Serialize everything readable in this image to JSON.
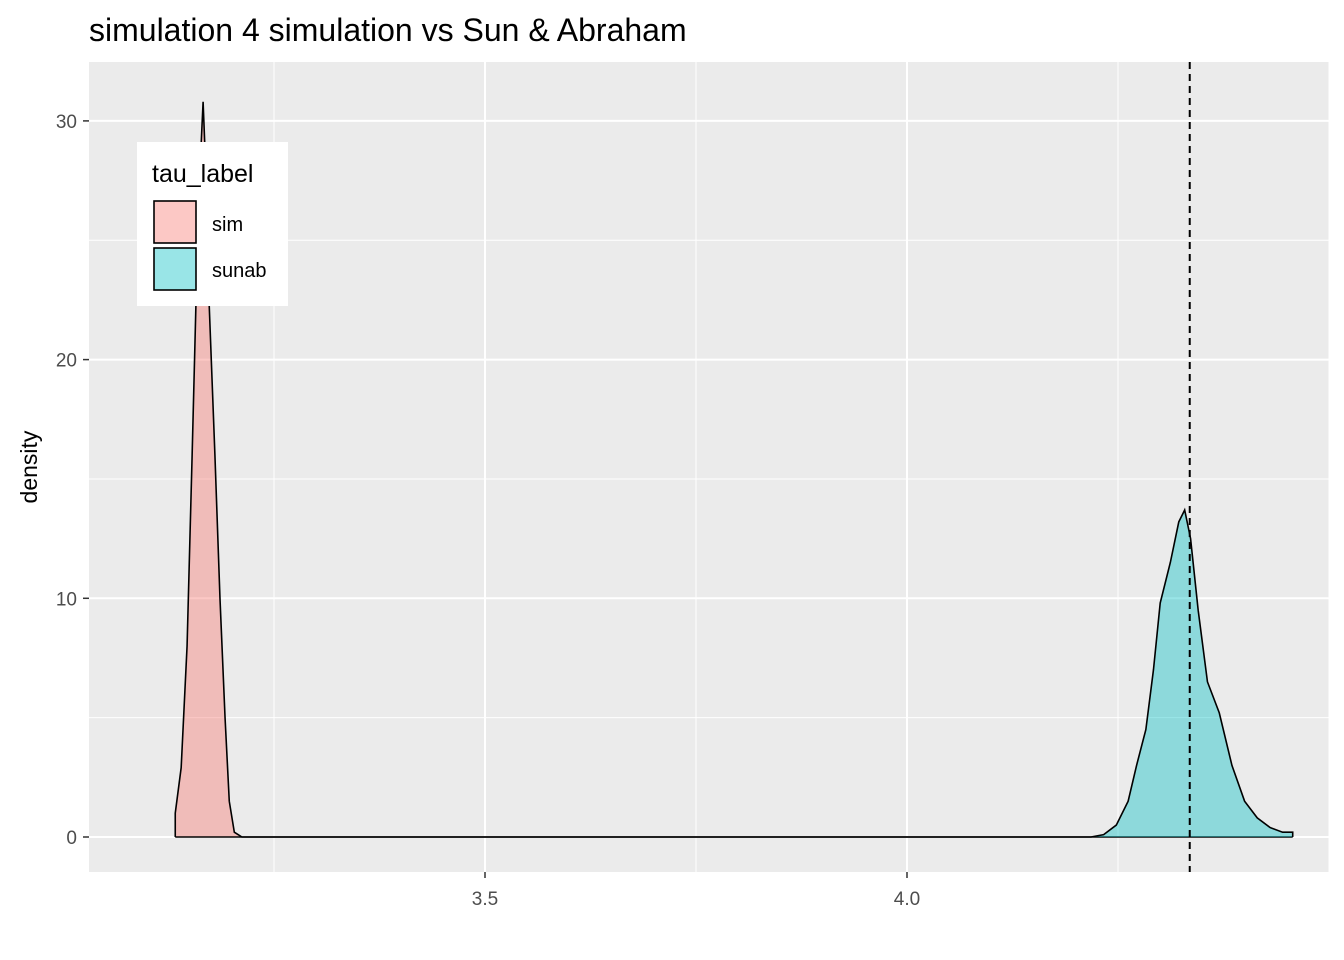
{
  "chart_data": {
    "type": "area",
    "title": "simulation 4 simulation vs Sun & Abraham",
    "xlabel": "",
    "ylabel": "density",
    "xlim": [
      3.1,
      4.5
    ],
    "ylim": [
      -1.5,
      32.5
    ],
    "x_ticks": [
      3.5,
      4.0
    ],
    "x_tick_labels": [
      "3.5",
      "4.0"
    ],
    "y_ticks": [
      0,
      10,
      20,
      30
    ],
    "y_tick_labels": [
      "0",
      "10",
      "20",
      "30"
    ],
    "grid": true,
    "legend_position": "top-left",
    "legend_title": "tau_label",
    "series": [
      {
        "name": "sim",
        "color": "#F8766D",
        "points": [
          [
            3.133,
            0.0
          ],
          [
            3.133,
            1.0
          ],
          [
            3.14,
            2.9
          ],
          [
            3.147,
            8.0
          ],
          [
            3.153,
            16.0
          ],
          [
            3.158,
            23.0
          ],
          [
            3.163,
            28.5
          ],
          [
            3.166,
            30.8
          ],
          [
            3.168,
            29.0
          ],
          [
            3.173,
            22.5
          ],
          [
            3.18,
            16.0
          ],
          [
            3.186,
            10.0
          ],
          [
            3.192,
            5.0
          ],
          [
            3.197,
            1.5
          ],
          [
            3.203,
            0.2
          ],
          [
            3.212,
            0.0
          ],
          [
            4.457,
            0.0
          ]
        ]
      },
      {
        "name": "sunab",
        "color": "#00BFC4",
        "points": [
          [
            3.133,
            0.0
          ],
          [
            4.218,
            0.0
          ],
          [
            4.233,
            0.1
          ],
          [
            4.248,
            0.5
          ],
          [
            4.262,
            1.5
          ],
          [
            4.272,
            3.0
          ],
          [
            4.283,
            4.5
          ],
          [
            4.292,
            7.0
          ],
          [
            4.3,
            9.8
          ],
          [
            4.312,
            11.5
          ],
          [
            4.322,
            13.2
          ],
          [
            4.329,
            13.7
          ],
          [
            4.336,
            12.5
          ],
          [
            4.345,
            9.5
          ],
          [
            4.356,
            6.5
          ],
          [
            4.37,
            5.2
          ],
          [
            4.385,
            3.0
          ],
          [
            4.4,
            1.5
          ],
          [
            4.415,
            0.8
          ],
          [
            4.43,
            0.4
          ],
          [
            4.445,
            0.2
          ],
          [
            4.457,
            0.2
          ],
          [
            4.457,
            0.0
          ]
        ]
      }
    ],
    "reference_line": {
      "x": 4.335,
      "style": "dashed",
      "color": "#000000"
    }
  }
}
